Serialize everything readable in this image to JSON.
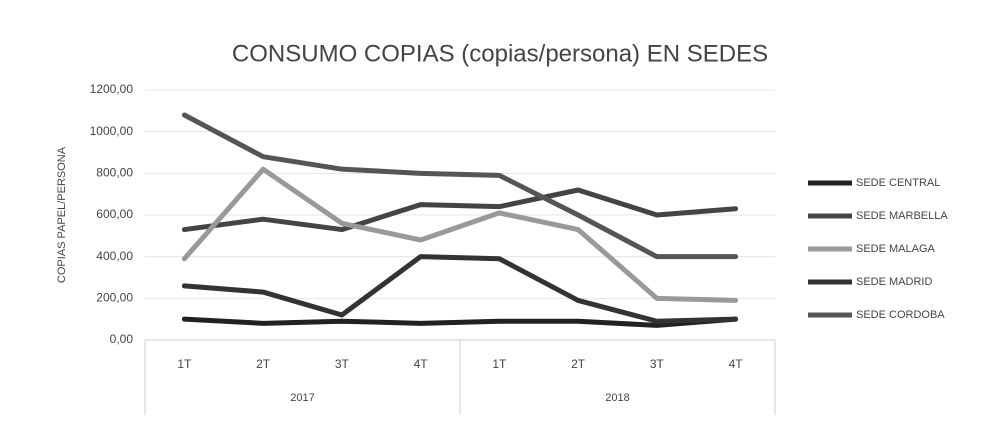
{
  "chart_data": {
    "type": "line",
    "title": "CONSUMO COPIAS (copias/persona) EN SEDES",
    "y_label": "COPIAS PAPEL/PERSONA",
    "categories": [
      "1T",
      "2T",
      "3T",
      "4T",
      "1T",
      "2T",
      "3T",
      "4T"
    ],
    "group_labels": [
      "2017",
      "2018"
    ],
    "series": [
      {
        "name": "SEDE CENTRAL",
        "color": "#222222",
        "values": [
          100,
          80,
          90,
          80,
          90,
          90,
          70,
          100
        ]
      },
      {
        "name": "SEDE MARBELLA",
        "color": "#444444",
        "values": [
          530,
          580,
          530,
          650,
          640,
          720,
          600,
          630
        ]
      },
      {
        "name": "SEDE MALAGA",
        "color": "#999999",
        "values": [
          390,
          820,
          560,
          480,
          610,
          530,
          200,
          190
        ]
      },
      {
        "name": "SEDE MADRID",
        "color": "#333333",
        "values": [
          260,
          230,
          120,
          400,
          390,
          190,
          90,
          100
        ]
      },
      {
        "name": "SEDE CORDOBA",
        "color": "#555555",
        "values": [
          1080,
          880,
          820,
          800,
          790,
          600,
          400,
          400
        ]
      }
    ],
    "ylim": [
      0,
      1200
    ],
    "yticks": [
      {
        "value": 0,
        "label": "0,00"
      },
      {
        "value": 200,
        "label": "200,00"
      },
      {
        "value": 400,
        "label": "400,00"
      },
      {
        "value": 600,
        "label": "600,00"
      },
      {
        "value": 800,
        "label": "800,00"
      },
      {
        "value": 1000,
        "label": "1000,00"
      },
      {
        "value": 1200,
        "label": "1200,00"
      }
    ],
    "grid": true
  }
}
